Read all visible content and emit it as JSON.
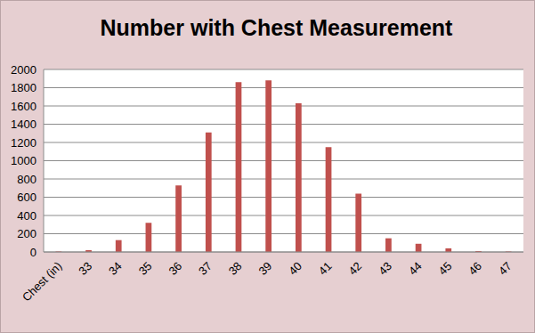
{
  "chart_data": {
    "type": "bar",
    "title": "Number with Chest Measurement",
    "categories": [
      "Chest (in)",
      "33",
      "34",
      "35",
      "36",
      "37",
      "38",
      "39",
      "40",
      "41",
      "42",
      "43",
      "44",
      "45",
      "46",
      "47"
    ],
    "values": [
      5,
      20,
      130,
      320,
      730,
      1310,
      1860,
      1880,
      1630,
      1150,
      640,
      150,
      90,
      40,
      10,
      5
    ],
    "color": "#c0504d",
    "ylim": [
      0,
      2000
    ],
    "yticks": [
      0,
      200,
      400,
      600,
      800,
      1000,
      1200,
      1400,
      1600,
      1800,
      2000
    ],
    "grid": true
  }
}
